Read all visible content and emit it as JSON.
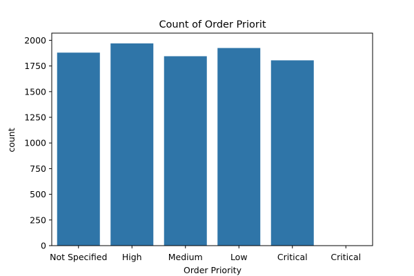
{
  "chart_data": {
    "type": "bar",
    "title": "Count of Order Priorit",
    "xlabel": "Order Priority",
    "ylabel": "count",
    "categories": [
      "Not Specified",
      "High",
      "Medium",
      "Low",
      "Critical",
      "Critical"
    ],
    "values": [
      1880,
      1970,
      1845,
      1925,
      1805,
      0
    ],
    "ylim": [
      0,
      2070
    ],
    "yticks": [
      0,
      250,
      500,
      750,
      1000,
      1250,
      1500,
      1750,
      2000
    ],
    "bar_color": "#2f75a8",
    "grid": false,
    "legend": "none"
  }
}
